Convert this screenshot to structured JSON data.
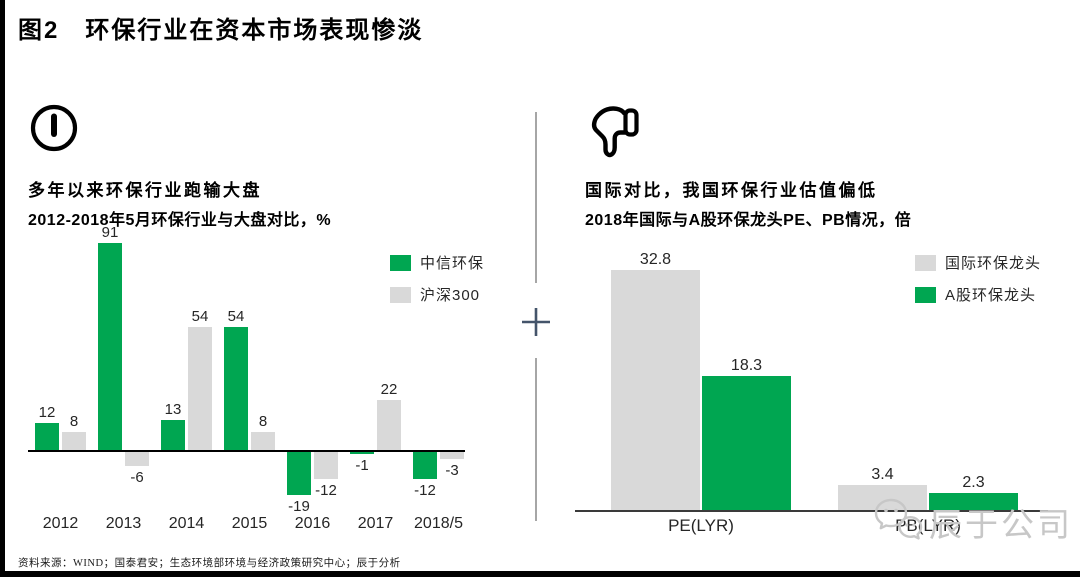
{
  "page": {
    "title": "图2　环保行业在资本市场表现惨淡",
    "source_note": "资料来源：WIND；国泰君安；生态环境部环境与经济政策研究中心；辰于分析",
    "watermark": "辰于公司"
  },
  "left_panel": {
    "icon": "exclamation-circle-icon",
    "heading": "多年以来环保行业跑输大盘",
    "subtitle": "2012-2018年5月环保行业与大盘对比，%"
  },
  "right_panel": {
    "icon": "thumbs-down-icon",
    "heading": "国际对比，我国环保行业估值偏低",
    "subtitle": "2018年国际与A股环保龙头PE、PB情况，倍"
  },
  "colors": {
    "green": "#00A651",
    "gray": "#D9D9D9",
    "plus": "#44546A",
    "divider": "#A6A6A6",
    "watermark": "#C7C7C7"
  },
  "chart_data": [
    {
      "type": "bar",
      "title": "2012-2018年5月环保行业与大盘对比，%",
      "categories": [
        "2012",
        "2013",
        "2014",
        "2015",
        "2016",
        "2017",
        "2018/5"
      ],
      "series": [
        {
          "name": "中信环保",
          "color": "#00A651",
          "values": [
            12,
            91,
            13,
            54,
            -19,
            -1,
            -12
          ]
        },
        {
          "name": "沪深300",
          "color": "#D9D9D9",
          "values": [
            8,
            -6,
            54,
            8,
            -12,
            22,
            -3
          ]
        }
      ],
      "xlabel": "",
      "ylabel": "%",
      "ylim": [
        -19,
        91
      ],
      "grid": false,
      "legend_position": "top-right"
    },
    {
      "type": "bar",
      "title": "2018年国际与A股环保龙头PE、PB情况，倍",
      "categories": [
        "PE(LYR)",
        "PB(LYR)"
      ],
      "series": [
        {
          "name": "国际环保龙头",
          "color": "#D9D9D9",
          "values": [
            32.8,
            3.4
          ]
        },
        {
          "name": "A股环保龙头",
          "color": "#00A651",
          "values": [
            18.3,
            2.3
          ]
        }
      ],
      "xlabel": "",
      "ylabel": "倍",
      "ylim": [
        0,
        32.8
      ],
      "grid": false,
      "legend_position": "top-right"
    }
  ]
}
